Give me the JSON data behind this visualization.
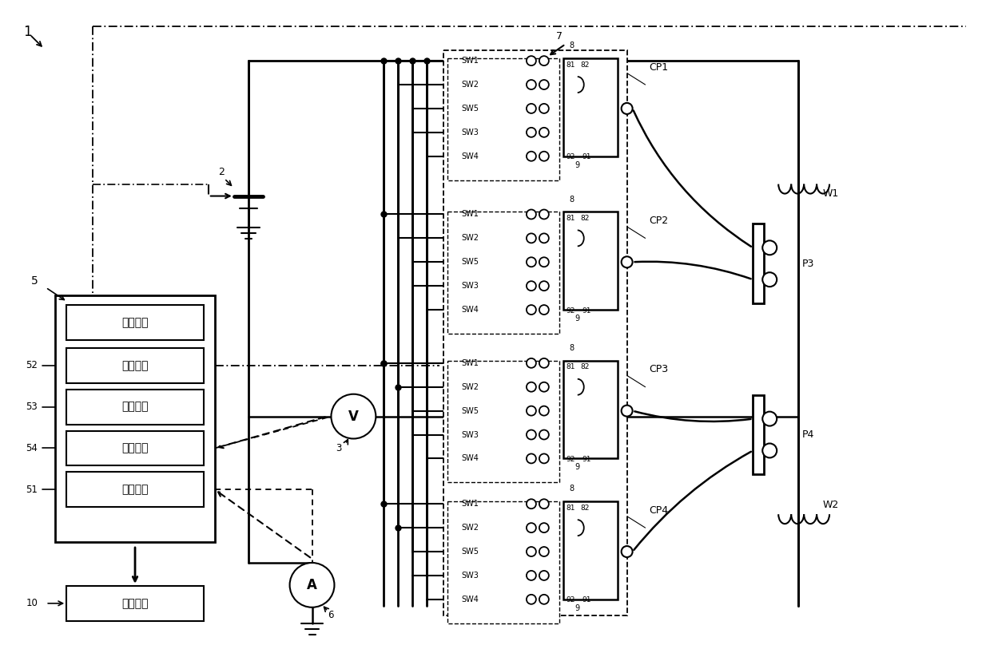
{
  "fig_w": 12.39,
  "fig_h": 8.13,
  "bg": "#ffffff",
  "unit_labels": [
    "控制单元",
    "选择单元",
    "计算单元",
    "判定单元",
    "存储单元"
  ],
  "display_label": "显示单元",
  "sw_labels": [
    "SW1",
    "SW2",
    "SW5",
    "SW3",
    "SW4"
  ],
  "cp_labels": [
    "CP1",
    "CP2",
    "CP3",
    "CP4"
  ],
  "label1": "1",
  "label2": "2",
  "label3": "3",
  "label5": "5",
  "label6": "6",
  "label7": "7",
  "label8": "8",
  "label9": "9",
  "label10": "10",
  "label51": "51",
  "label52": "52",
  "label53": "53",
  "label54": "54",
  "label81": "81",
  "label82": "82",
  "label91": "91",
  "label92": "92",
  "labelW1": "W1",
  "labelW2": "W2",
  "labelP3": "P3",
  "labelP4": "P4"
}
